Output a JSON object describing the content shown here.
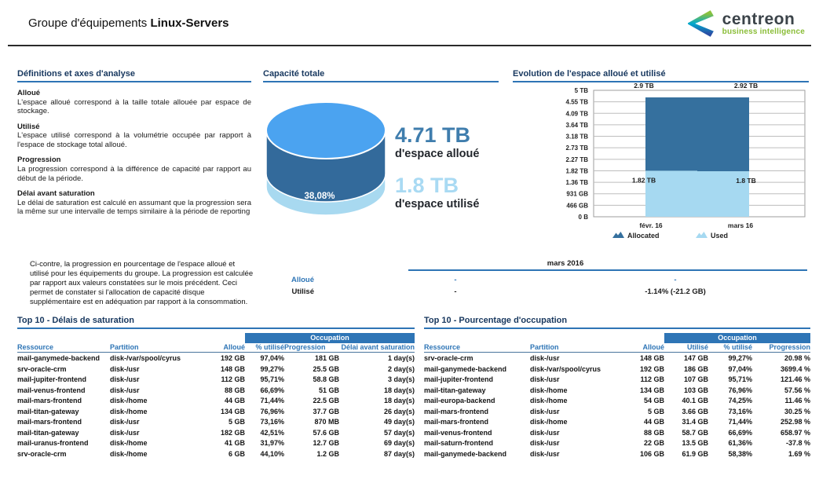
{
  "header": {
    "title_prefix": "Groupe d'équipements",
    "title_name": "Linux-Servers",
    "logo": {
      "brand": "centreon",
      "tagline": "business intelligence"
    }
  },
  "colors": {
    "accent_blue": "#2e74b5",
    "navy_title": "#17375e",
    "allocated": "#35709e",
    "used": "#a6d9f1",
    "cylinder_top": "#4ba3f0",
    "logo_green": "#8abd37"
  },
  "definitions": {
    "title": "Définitions et axes d'analyse",
    "items": [
      {
        "term": "Alloué",
        "text": "L'espace alloué correspond à la taille totale allouée par espace de stockage."
      },
      {
        "term": "Utilisé",
        "text": "L'espace utilisé correspond à la volumétrie occupée par rapport à l'espace de stockage total alloué."
      },
      {
        "term": "Progression",
        "text": "La progression correspond à la différence de capacité par rapport au début de la période."
      },
      {
        "term": "Délai avant saturation",
        "text": "Le délai de saturation est calculé en assumant que la progression sera la même sur une intervalle de temps similaire à la période de reporting"
      }
    ]
  },
  "capacity": {
    "title": "Capacité totale",
    "percent_label": "38,08%",
    "allocated_value": "4.71 TB",
    "allocated_label": "d'espace alloué",
    "used_value": "1.8 TB",
    "used_label": "d'espace utilisé"
  },
  "evolution": {
    "title": "Evolution de l'espace alloué et utilisé"
  },
  "chart_data": [
    {
      "type": "pie",
      "title": "Capacité totale",
      "allocated": "4.71 TB",
      "used": "1.8 TB",
      "used_percent": 38.08,
      "labels": [
        "d'espace alloué",
        "d'espace utilisé"
      ]
    },
    {
      "type": "bar",
      "stacked": true,
      "title": "Evolution de l'espace alloué et utilisé",
      "categories": [
        "févr. 16",
        "mars 16"
      ],
      "series": [
        {
          "name": "Allocated",
          "values_tb": [
            2.9,
            2.92
          ],
          "labels": [
            "2.9 TB",
            "2.92 TB"
          ],
          "color": "#35709e"
        },
        {
          "name": "Used",
          "values_tb": [
            1.82,
            1.8
          ],
          "labels": [
            "1.82 TB",
            "1.8 TB"
          ],
          "color": "#a6d9f1"
        }
      ],
      "y_ticks": [
        "5 TB",
        "4.55 TB",
        "4.09 TB",
        "3.64 TB",
        "3.18 TB",
        "2.73 TB",
        "2.27 TB",
        "1.82 TB",
        "1.36 TB",
        "931 GB",
        "466 GB",
        "0 B"
      ],
      "ylim_tb": [
        0,
        5
      ],
      "grid": true,
      "legend": [
        "Allocated",
        "Used"
      ],
      "legend_position": "bottom"
    }
  ],
  "progression": {
    "text": "Ci-contre, la progression en pourcentage de l'espace alloué et utilisé pour les équipements du groupe. La progression est calculée par rapport aux valeurs constatées sur le mois précédent. Ceci permet de constater si l'allocation de capacité disque supplémentaire est en adéquation par rapport à la consommation.",
    "period_label": "mars 2016",
    "rows": [
      {
        "label": "Alloué",
        "col1": "-",
        "col2": "-"
      },
      {
        "label": "Utilisé",
        "col1": "-",
        "col2": "-1.14% (-21.2 GB)"
      }
    ]
  },
  "tables": {
    "saturation": {
      "title": "Top 10 - Délais de saturation",
      "band_label": "Occupation",
      "columns": [
        "Ressource",
        "Partition",
        "Alloué",
        "% utilisé",
        "Progression",
        "Délai avant saturation"
      ],
      "rows": [
        {
          "resource": "mail-ganymede-backend",
          "partition": "disk-/var/spool/cyrus",
          "allocated": "192 GB",
          "pct_used": "97,04%",
          "progression": "181 GB",
          "delay": "1 day(s)"
        },
        {
          "resource": "srv-oracle-crm",
          "partition": "disk-/usr",
          "allocated": "148 GB",
          "pct_used": "99,27%",
          "progression": "25.5 GB",
          "delay": "2 day(s)"
        },
        {
          "resource": "mail-jupiter-frontend",
          "partition": "disk-/usr",
          "allocated": "112 GB",
          "pct_used": "95,71%",
          "progression": "58.8 GB",
          "delay": "3 day(s)"
        },
        {
          "resource": "mail-venus-frontend",
          "partition": "disk-/usr",
          "allocated": "88 GB",
          "pct_used": "66,69%",
          "progression": "51 GB",
          "delay": "18 day(s)"
        },
        {
          "resource": "mail-mars-frontend",
          "partition": "disk-/home",
          "allocated": "44 GB",
          "pct_used": "71,44%",
          "progression": "22.5 GB",
          "delay": "18 day(s)"
        },
        {
          "resource": "mail-titan-gateway",
          "partition": "disk-/home",
          "allocated": "134 GB",
          "pct_used": "76,96%",
          "progression": "37.7 GB",
          "delay": "26 day(s)"
        },
        {
          "resource": "mail-mars-frontend",
          "partition": "disk-/usr",
          "allocated": "5 GB",
          "pct_used": "73,16%",
          "progression": "870 MB",
          "delay": "49 day(s)"
        },
        {
          "resource": "mail-titan-gateway",
          "partition": "disk-/usr",
          "allocated": "182 GB",
          "pct_used": "42,51%",
          "progression": "57.6 GB",
          "delay": "57 day(s)"
        },
        {
          "resource": "mail-uranus-frontend",
          "partition": "disk-/home",
          "allocated": "41 GB",
          "pct_used": "31,97%",
          "progression": "12.7 GB",
          "delay": "69 day(s)"
        },
        {
          "resource": "srv-oracle-crm",
          "partition": "disk-/home",
          "allocated": "6 GB",
          "pct_used": "44,10%",
          "progression": "1.2 GB",
          "delay": "87 day(s)"
        }
      ]
    },
    "occupation": {
      "title": "Top 10 - Pourcentage d'occupation",
      "band_label": "Occupation",
      "columns": [
        "Ressource",
        "Partition",
        "Alloué",
        "Utilisé",
        "% utilisé",
        "Progression"
      ],
      "rows": [
        {
          "resource": "srv-oracle-crm",
          "partition": "disk-/usr",
          "allocated": "148 GB",
          "used": "147 GB",
          "pct_used": "99,27%",
          "progression": "20.98 %"
        },
        {
          "resource": "mail-ganymede-backend",
          "partition": "disk-/var/spool/cyrus",
          "allocated": "192 GB",
          "used": "186 GB",
          "pct_used": "97,04%",
          "progression": "3699.4 %"
        },
        {
          "resource": "mail-jupiter-frontend",
          "partition": "disk-/usr",
          "allocated": "112 GB",
          "used": "107 GB",
          "pct_used": "95,71%",
          "progression": "121.46 %"
        },
        {
          "resource": "mail-titan-gateway",
          "partition": "disk-/home",
          "allocated": "134 GB",
          "used": "103 GB",
          "pct_used": "76,96%",
          "progression": "57.56 %"
        },
        {
          "resource": "mail-europa-backend",
          "partition": "disk-/home",
          "allocated": "54 GB",
          "used": "40.1 GB",
          "pct_used": "74,25%",
          "progression": "11.46 %"
        },
        {
          "resource": "mail-mars-frontend",
          "partition": "disk-/usr",
          "allocated": "5 GB",
          "used": "3.66 GB",
          "pct_used": "73,16%",
          "progression": "30.25 %"
        },
        {
          "resource": "mail-mars-frontend",
          "partition": "disk-/home",
          "allocated": "44 GB",
          "used": "31.4 GB",
          "pct_used": "71,44%",
          "progression": "252.98 %"
        },
        {
          "resource": "mail-venus-frontend",
          "partition": "disk-/usr",
          "allocated": "88 GB",
          "used": "58.7 GB",
          "pct_used": "66,69%",
          "progression": "658.97 %"
        },
        {
          "resource": "mail-saturn-frontend",
          "partition": "disk-/usr",
          "allocated": "22 GB",
          "used": "13.5 GB",
          "pct_used": "61,36%",
          "progression": "-37.8 %"
        },
        {
          "resource": "mail-ganymede-backend",
          "partition": "disk-/usr",
          "allocated": "106 GB",
          "used": "61.9 GB",
          "pct_used": "58,38%",
          "progression": "1.69 %"
        }
      ]
    }
  }
}
